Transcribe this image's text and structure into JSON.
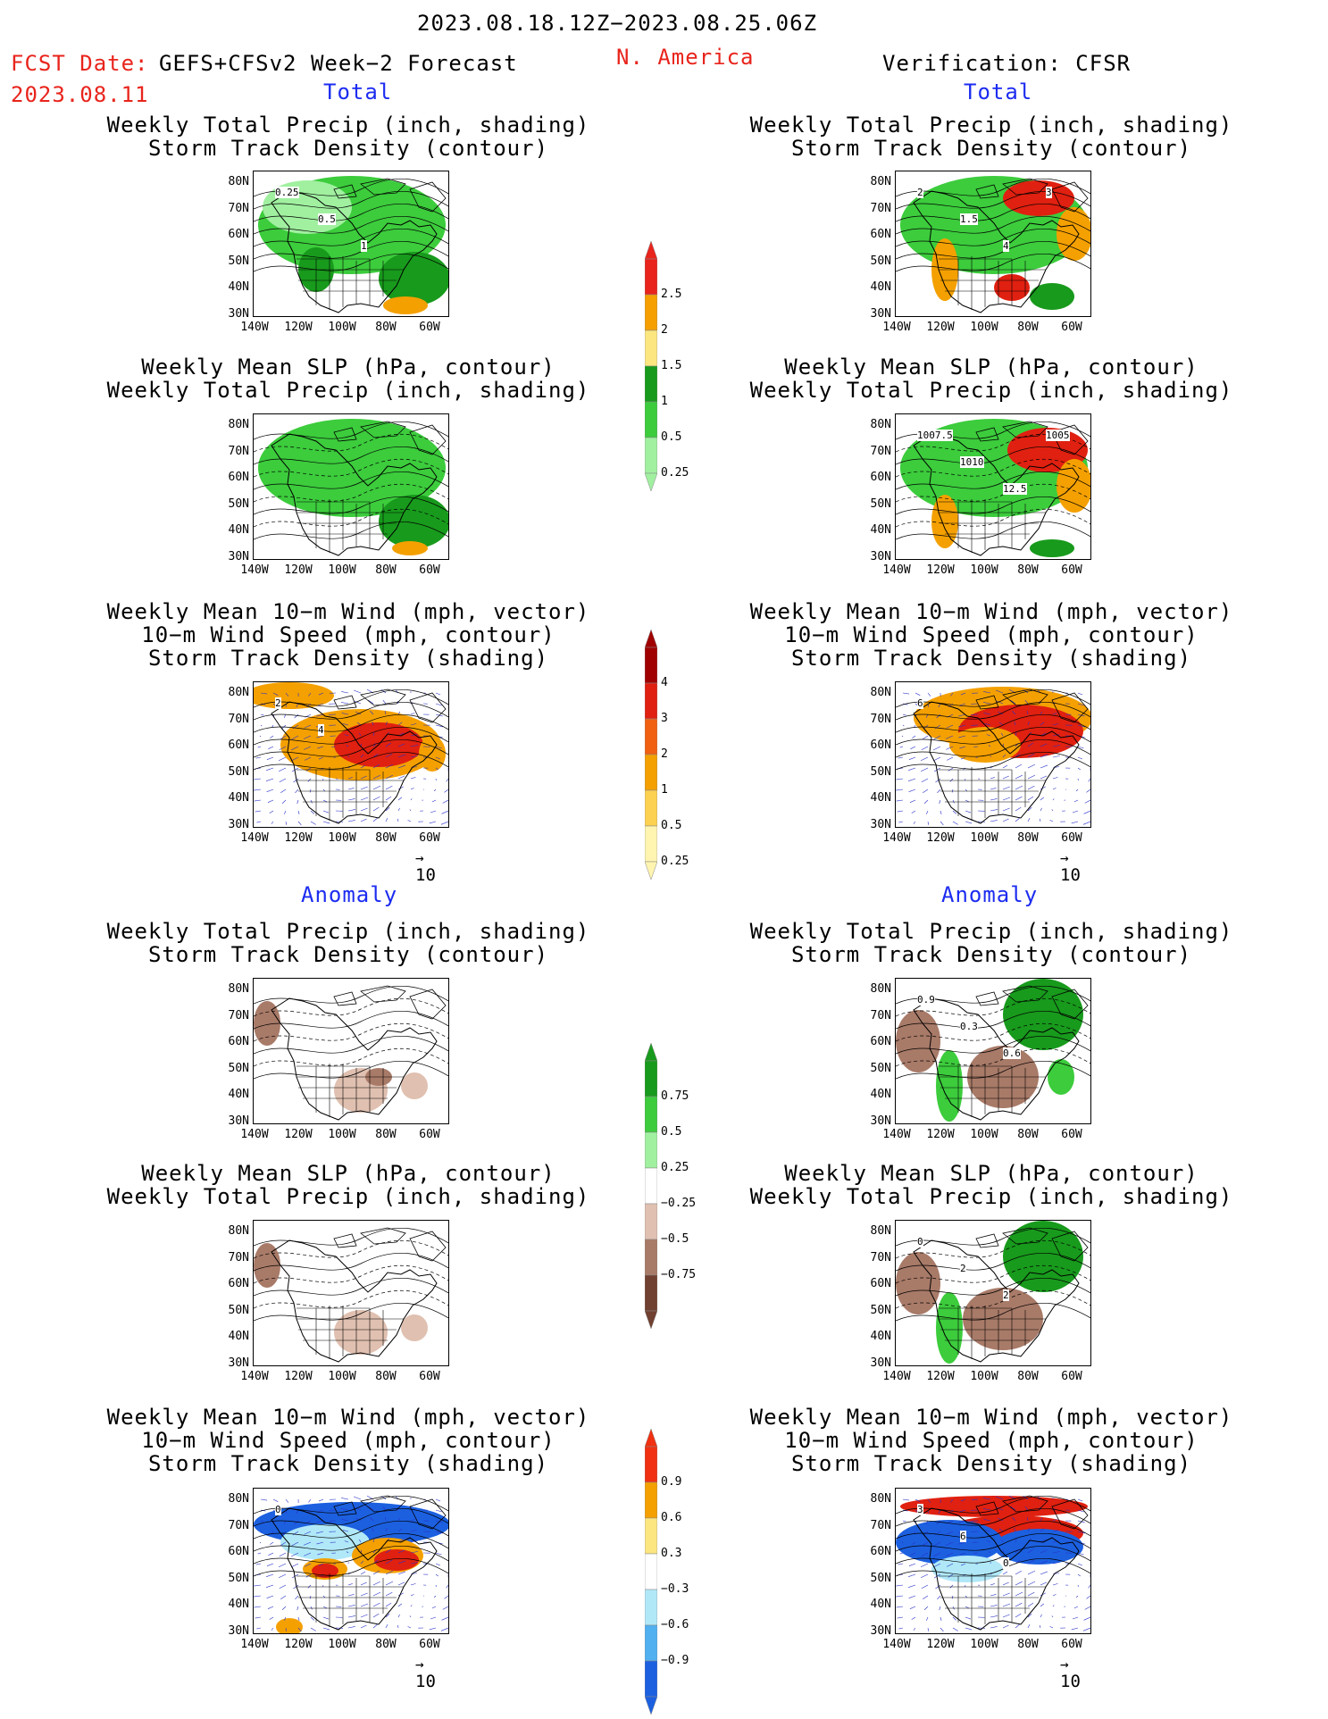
{
  "header": {
    "date_range": "2023.08.18.12Z−2023.08.25.06Z",
    "fcst_label": "FCST Date:",
    "fcst_model": "GEFS+CFSv2 Week−2 Forecast",
    "fcst_date": "2023.08.11",
    "region": "N. America",
    "verification": "Verification: CFSR"
  },
  "sections": {
    "total": "Total",
    "anomaly": "Anomaly"
  },
  "panels": {
    "p1": [
      "Weekly Total Precip (inch, shading)",
      "Storm Track Density (contour)"
    ],
    "p2": [
      "Weekly Mean SLP (hPa, contour)",
      "Weekly Total Precip (inch, shading)"
    ],
    "p3": [
      "Weekly Mean 10−m Wind (mph, vector)",
      "10−m Wind Speed (mph, contour)",
      "Storm Track Density (shading)"
    ]
  },
  "axes": {
    "lat": [
      "80N",
      "70N",
      "60N",
      "50N",
      "40N",
      "30N"
    ],
    "lon": [
      "140W",
      "120W",
      "100W",
      "80W",
      "60W"
    ]
  },
  "vector_ref": "10",
  "contour_labels": {
    "fc_total_p1": [
      "0.25",
      "0.5",
      "1"
    ],
    "obs_total_p1": [
      "2",
      "1.5",
      "4",
      "3"
    ],
    "obs_total_p2": [
      "1007.5",
      "1010",
      "12.5",
      "1005"
    ],
    "fc_total_p3": [
      "2",
      "4"
    ],
    "obs_total_p3": [
      "6"
    ],
    "obs_anom_p1": [
      "0.9",
      "0.3",
      "0.6"
    ],
    "obs_anom_p2": [
      "0",
      "2",
      "2"
    ],
    "fc_anom_p3": [
      "0"
    ],
    "obs_anom_p3": [
      "3",
      "6",
      "0"
    ]
  },
  "colorbars": {
    "precip_total": {
      "labels": [
        "2.5",
        "2",
        "1.5",
        "1",
        "0.5",
        "0.25"
      ],
      "colors": [
        "#e8241c",
        "#f5a000",
        "#fce680",
        "#189a1c",
        "#3ccc3c",
        "#a0f0a0"
      ]
    },
    "storm_total": {
      "labels": [
        "4",
        "3",
        "2",
        "1",
        "0.5",
        "0.25"
      ],
      "colors": [
        "#a00000",
        "#e02010",
        "#f06010",
        "#f4a000",
        "#fcd050",
        "#fff4b0"
      ]
    },
    "precip_anom": {
      "labels": [
        "0.75",
        "0.5",
        "0.25",
        "−0.25",
        "−0.5",
        "−0.75"
      ],
      "colors": [
        "#189a1c",
        "#3ccc3c",
        "#a0f0a0",
        "#ffffff",
        "#e0c0b0",
        "#a87a68",
        "#704030"
      ]
    },
    "storm_anom": {
      "labels": [
        "0.9",
        "0.6",
        "0.3",
        "−0.3",
        "−0.6",
        "−0.9"
      ],
      "colors": [
        "#f03010",
        "#f4a000",
        "#fce680",
        "#ffffff",
        "#b0e8f8",
        "#50b0f0",
        "#1c60e0"
      ]
    }
  },
  "palette": {
    "green_dark": "#189a1c",
    "green": "#3ccc3c",
    "green_light": "#a0f0a0",
    "brown": "#a87a68",
    "brown_light": "#e0c0b0",
    "orange": "#f4a000",
    "red": "#e02010",
    "blue": "#1c60e0",
    "blue_light": "#b0e8f8",
    "header_red": "#e8241c",
    "section_blue": "#1c2cf0"
  }
}
